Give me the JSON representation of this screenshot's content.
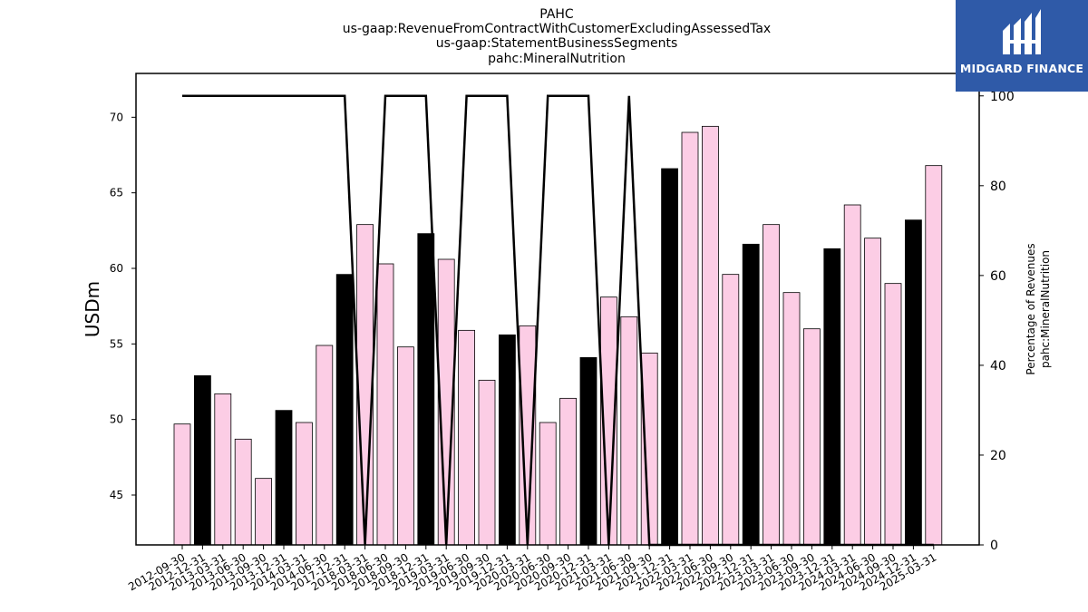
{
  "logo": {
    "text": "MIDGARD FINANCE",
    "background": "#2f5aa8"
  },
  "chart_data": {
    "type": "bar",
    "title": [
      "PAHC",
      "us-gaap:RevenueFromContractWithCustomerExcludingAssessedTax",
      "us-gaap:StatementBusinessSegments",
      "pahc:MineralNutrition"
    ],
    "ylabel": "USDm",
    "ylabel_right": [
      "Percentage of Revenues",
      "pahc:MineralNutrition"
    ],
    "ylim": [
      41.7,
      72.9
    ],
    "ylim_right": [
      0,
      105
    ],
    "yticks": [
      45,
      50,
      55,
      60,
      65,
      70
    ],
    "yticks_right": [
      0,
      20,
      40,
      60,
      80,
      100
    ],
    "categories": [
      "2012-09-30",
      "2012-12-31",
      "2013-03-31",
      "2013-06-30",
      "2013-09-30",
      "2013-12-31",
      "2014-03-31",
      "2014-06-30",
      "2017-12-31",
      "2018-03-31",
      "2018-06-30",
      "2018-09-30",
      "2018-12-31",
      "2019-03-31",
      "2019-06-30",
      "2019-09-30",
      "2019-12-31",
      "2020-03-31",
      "2020-06-30",
      "2020-09-30",
      "2020-12-31",
      "2021-03-31",
      "2021-06-30",
      "2021-09-30",
      "2021-12-31",
      "2022-03-31",
      "2022-06-30",
      "2022-09-30",
      "2022-12-31",
      "2023-03-31",
      "2023-06-30",
      "2023-09-30",
      "2023-12-31",
      "2024-03-31",
      "2024-06-30",
      "2024-09-30",
      "2024-12-31",
      "2025-03-31"
    ],
    "values": [
      49.7,
      52.9,
      51.7,
      48.7,
      46.1,
      50.6,
      49.8,
      54.9,
      59.6,
      62.9,
      60.3,
      54.8,
      62.3,
      60.6,
      55.9,
      52.6,
      55.6,
      56.2,
      49.8,
      51.4,
      54.1,
      58.1,
      56.8,
      54.4,
      66.6,
      69.0,
      69.4,
      59.6,
      61.6,
      62.9,
      58.4,
      56.0,
      61.3,
      64.2,
      62.0,
      59.0,
      63.2,
      66.8
    ],
    "bar_colors": [
      "#fccde5",
      "#000000",
      "#fccde5",
      "#fccde5",
      "#fccde5",
      "#000000",
      "#fccde5",
      "#fccde5",
      "#000000",
      "#fccde5",
      "#fccde5",
      "#fccde5",
      "#000000",
      "#fccde5",
      "#fccde5",
      "#fccde5",
      "#000000",
      "#fccde5",
      "#fccde5",
      "#fccde5",
      "#000000",
      "#fccde5",
      "#fccde5",
      "#fccde5",
      "#000000",
      "#fccde5",
      "#fccde5",
      "#fccde5",
      "#000000",
      "#fccde5",
      "#fccde5",
      "#fccde5",
      "#000000",
      "#fccde5",
      "#fccde5",
      "#fccde5",
      "#000000",
      "#fccde5"
    ],
    "percentage_line": [
      100,
      100,
      100,
      100,
      100,
      100,
      100,
      100,
      100,
      0,
      100,
      100,
      100,
      0,
      100,
      100,
      100,
      0,
      100,
      100,
      100,
      0,
      100,
      0,
      0,
      0,
      0,
      0,
      0,
      0,
      0,
      0,
      0,
      0,
      0,
      0,
      0,
      0
    ],
    "grid": false
  }
}
